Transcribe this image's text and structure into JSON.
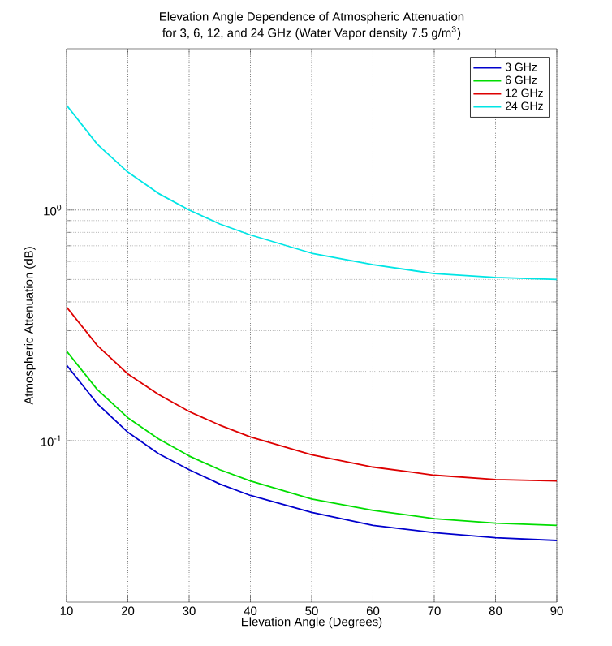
{
  "chart_data": {
    "type": "line",
    "title": "Elevation Angle Dependence of Atmospheric Attenuation",
    "subtitle": "for 3, 6, 12, and 24 GHz (Water Vapor density 7.5 g/m$^{3}$)",
    "xlabel": "Elevation Angle (Degrees)",
    "ylabel": "Atmospheric Attenuation (dB)",
    "x": [
      10,
      15,
      20,
      25,
      30,
      35,
      40,
      50,
      60,
      70,
      80,
      90
    ],
    "series": [
      {
        "name": "3 GHz",
        "color": "#0000cc",
        "values": [
          0.213,
          0.145,
          0.109,
          0.088,
          0.075,
          0.065,
          0.058,
          0.049,
          0.043,
          0.04,
          0.038,
          0.037
        ]
      },
      {
        "name": "6 GHz",
        "color": "#00dd00",
        "values": [
          0.245,
          0.167,
          0.126,
          0.102,
          0.086,
          0.075,
          0.067,
          0.056,
          0.05,
          0.046,
          0.044,
          0.043
        ]
      },
      {
        "name": "12 GHz",
        "color": "#dd0000",
        "values": [
          0.38,
          0.259,
          0.195,
          0.159,
          0.134,
          0.117,
          0.104,
          0.087,
          0.077,
          0.071,
          0.068,
          0.067
        ]
      },
      {
        "name": "24 GHz",
        "color": "#00e5e5",
        "values": [
          2.85,
          1.93,
          1.46,
          1.18,
          1.0,
          0.87,
          0.78,
          0.65,
          0.58,
          0.53,
          0.51,
          0.5
        ]
      }
    ],
    "xlim": [
      10,
      90
    ],
    "xticks": [
      10,
      20,
      30,
      40,
      50,
      60,
      70,
      80,
      90
    ],
    "ylim": [
      0.02,
      5
    ],
    "yticks": [
      {
        "value": 0.1,
        "label": "10$^{-1}$"
      },
      {
        "value": 1,
        "label": "10$^{0}$"
      }
    ],
    "log": "y",
    "grid": true,
    "legend": "top right",
    "marker": "none",
    "line_style": "solid"
  }
}
